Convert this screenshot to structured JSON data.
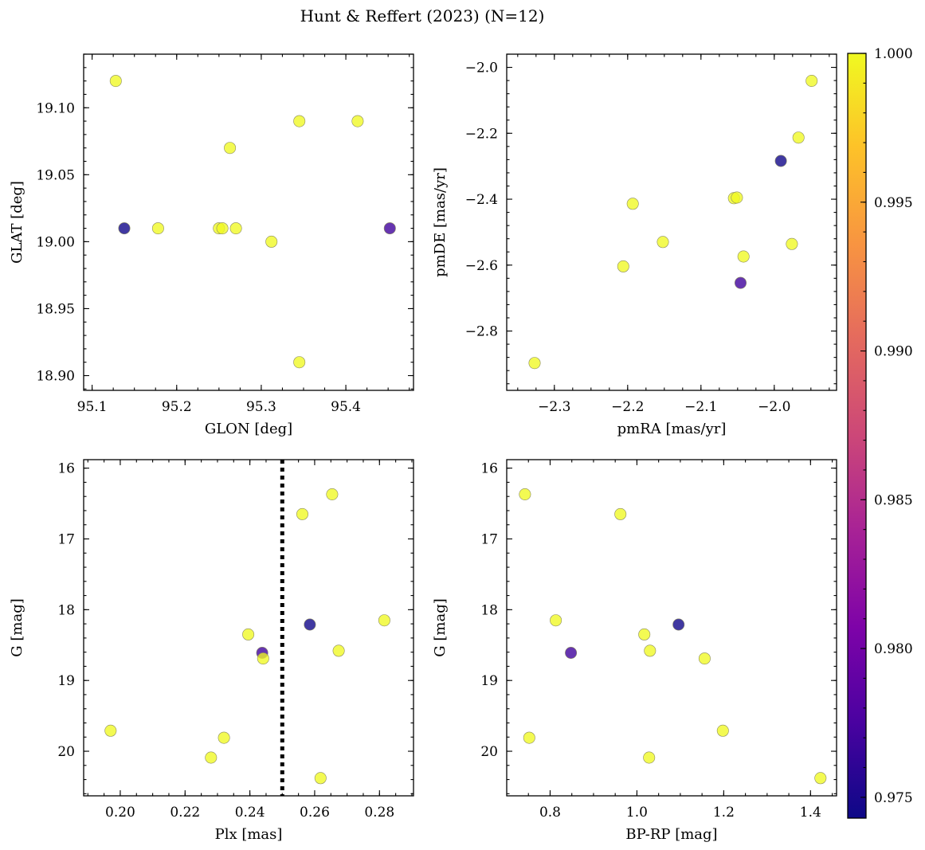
{
  "figure": {
    "title": "Hunt & Reffert (2023) (N=12)"
  },
  "colorbar": {
    "colormap": "plasma",
    "min": 0.9743,
    "max": 1.0,
    "ticks": [
      0.975,
      0.98,
      0.985,
      0.99,
      0.995,
      1.0
    ],
    "tick_labels": [
      "0.975",
      "0.980",
      "0.985",
      "0.990",
      "0.995",
      "1.000"
    ]
  },
  "chart_data": [
    {
      "type": "scatter",
      "id": "glon-glat",
      "xlabel": "GLON [deg]",
      "ylabel": "GLAT [deg]",
      "xlim": [
        95.09,
        95.48
      ],
      "ylim": [
        18.889,
        19.14
      ],
      "x_ticks": [
        95.1,
        95.2,
        95.3,
        95.4
      ],
      "x_tick_labels": [
        "95.1",
        "95.2",
        "95.3",
        "95.4"
      ],
      "y_ticks": [
        18.9,
        18.95,
        19.0,
        19.05,
        19.1
      ],
      "y_tick_labels": [
        "18.90",
        "18.95",
        "19.00",
        "19.05",
        "19.10"
      ],
      "y_inverted": false,
      "points": [
        {
          "x": 95.128,
          "y": 19.12,
          "c": 1.0
        },
        {
          "x": 95.138,
          "y": 19.01,
          "c": 0.9745
        },
        {
          "x": 95.178,
          "y": 19.01,
          "c": 1.0
        },
        {
          "x": 95.25,
          "y": 19.01,
          "c": 1.0
        },
        {
          "x": 95.254,
          "y": 19.01,
          "c": 1.0
        },
        {
          "x": 95.263,
          "y": 19.07,
          "c": 1.0
        },
        {
          "x": 95.27,
          "y": 19.01,
          "c": 1.0
        },
        {
          "x": 95.312,
          "y": 19.0,
          "c": 1.0
        },
        {
          "x": 95.345,
          "y": 19.09,
          "c": 1.0
        },
        {
          "x": 95.345,
          "y": 18.91,
          "c": 1.0
        },
        {
          "x": 95.414,
          "y": 19.09,
          "c": 1.0
        },
        {
          "x": 95.452,
          "y": 19.01,
          "c": 0.977
        }
      ]
    },
    {
      "type": "scatter",
      "id": "pmra-pmde",
      "xlabel": "pmRA [mas/yr]",
      "ylabel": "pmDE [mas/yr]",
      "xlim": [
        -2.365,
        -1.915
      ],
      "ylim": [
        -2.98,
        -1.96
      ],
      "x_ticks": [
        -2.3,
        -2.2,
        -2.1,
        -2.0
      ],
      "x_tick_labels": [
        "−2.3",
        "−2.2",
        "−2.1",
        "−2.0"
      ],
      "y_ticks": [
        -2.8,
        -2.6,
        -2.4,
        -2.2,
        -2.0
      ],
      "y_tick_labels": [
        "−2.8",
        "−2.6",
        "−2.4",
        "−2.2",
        "−2.0"
      ],
      "y_inverted": false,
      "points": [
        {
          "x": -2.327,
          "y": -2.897,
          "c": 1.0
        },
        {
          "x": -2.206,
          "y": -2.604,
          "c": 1.0
        },
        {
          "x": -2.193,
          "y": -2.414,
          "c": 1.0
        },
        {
          "x": -2.152,
          "y": -2.53,
          "c": 1.0
        },
        {
          "x": -2.055,
          "y": -2.397,
          "c": 1.0
        },
        {
          "x": -2.051,
          "y": -2.395,
          "c": 1.0
        },
        {
          "x": -2.046,
          "y": -2.654,
          "c": 0.977
        },
        {
          "x": -2.042,
          "y": -2.574,
          "c": 1.0
        },
        {
          "x": -1.991,
          "y": -2.284,
          "c": 0.9745
        },
        {
          "x": -1.976,
          "y": -2.536,
          "c": 1.0
        },
        {
          "x": -1.967,
          "y": -2.213,
          "c": 1.0
        },
        {
          "x": -1.949,
          "y": -2.041,
          "c": 1.0
        }
      ]
    },
    {
      "type": "scatter",
      "id": "plx-g",
      "xlabel": "Plx [mas]",
      "ylabel": "G [mag]",
      "xlim": [
        0.1887,
        0.2905
      ],
      "ylim": [
        15.88,
        20.63
      ],
      "x_ticks": [
        0.2,
        0.22,
        0.24,
        0.26,
        0.28
      ],
      "x_tick_labels": [
        "0.20",
        "0.22",
        "0.24",
        "0.26",
        "0.28"
      ],
      "y_ticks": [
        16,
        17,
        18,
        19,
        20
      ],
      "y_tick_labels": [
        "16",
        "17",
        "18",
        "19",
        "20"
      ],
      "y_inverted": true,
      "vline": {
        "x": 0.25,
        "style": "dotted"
      },
      "points": [
        {
          "x": 0.197,
          "y": 19.71,
          "c": 1.0
        },
        {
          "x": 0.228,
          "y": 20.09,
          "c": 1.0
        },
        {
          "x": 0.232,
          "y": 19.81,
          "c": 1.0
        },
        {
          "x": 0.2395,
          "y": 18.35,
          "c": 1.0
        },
        {
          "x": 0.2438,
          "y": 18.61,
          "c": 0.977
        },
        {
          "x": 0.2441,
          "y": 18.69,
          "c": 1.0
        },
        {
          "x": 0.2562,
          "y": 16.65,
          "c": 1.0
        },
        {
          "x": 0.2585,
          "y": 18.21,
          "c": 0.9745
        },
        {
          "x": 0.2618,
          "y": 20.38,
          "c": 1.0
        },
        {
          "x": 0.2654,
          "y": 16.37,
          "c": 1.0
        },
        {
          "x": 0.2674,
          "y": 18.58,
          "c": 1.0
        },
        {
          "x": 0.2815,
          "y": 18.15,
          "c": 1.0
        }
      ]
    },
    {
      "type": "scatter",
      "id": "bprp-g",
      "xlabel": "BP-RP [mag]",
      "ylabel": "G [mag]",
      "xlim": [
        0.7,
        1.46
      ],
      "ylim": [
        15.88,
        20.63
      ],
      "x_ticks": [
        0.8,
        1.0,
        1.2,
        1.4
      ],
      "x_tick_labels": [
        "0.8",
        "1.0",
        "1.2",
        "1.4"
      ],
      "y_ticks": [
        16,
        17,
        18,
        19,
        20
      ],
      "y_tick_labels": [
        "16",
        "17",
        "18",
        "19",
        "20"
      ],
      "y_inverted": true,
      "points": [
        {
          "x": 0.742,
          "y": 16.37,
          "c": 1.0
        },
        {
          "x": 0.752,
          "y": 19.81,
          "c": 1.0
        },
        {
          "x": 0.813,
          "y": 18.15,
          "c": 1.0
        },
        {
          "x": 0.848,
          "y": 18.61,
          "c": 0.977
        },
        {
          "x": 0.962,
          "y": 16.65,
          "c": 1.0
        },
        {
          "x": 1.017,
          "y": 18.35,
          "c": 1.0
        },
        {
          "x": 1.028,
          "y": 20.09,
          "c": 1.0
        },
        {
          "x": 1.03,
          "y": 18.58,
          "c": 1.0
        },
        {
          "x": 1.096,
          "y": 18.21,
          "c": 0.9745
        },
        {
          "x": 1.156,
          "y": 18.69,
          "c": 1.0
        },
        {
          "x": 1.198,
          "y": 19.71,
          "c": 1.0
        },
        {
          "x": 1.423,
          "y": 20.38,
          "c": 1.0
        }
      ]
    }
  ]
}
